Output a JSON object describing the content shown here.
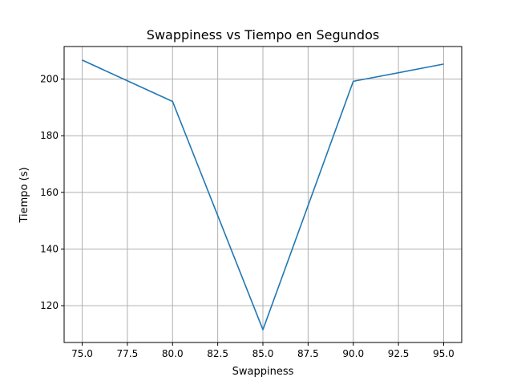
{
  "chart_data": {
    "type": "line",
    "title": "Swappiness vs Tiempo en Segundos",
    "xlabel": "Swappiness",
    "ylabel": "Tiempo (s)",
    "grid": true,
    "xlim": [
      74.0,
      96.0
    ],
    "ylim": [
      107.0,
      211.5
    ],
    "x_ticks": [
      "75.0",
      "77.5",
      "80.0",
      "82.5",
      "85.0",
      "87.5",
      "90.0",
      "92.5",
      "95.0"
    ],
    "y_ticks": [
      "120",
      "140",
      "160",
      "180",
      "200"
    ],
    "series": [
      {
        "color": "#1f77b4",
        "x": [
          75,
          80,
          85,
          90,
          95
        ],
        "y": [
          206.7,
          192.1,
          111.5,
          199.2,
          205.3
        ]
      }
    ]
  }
}
